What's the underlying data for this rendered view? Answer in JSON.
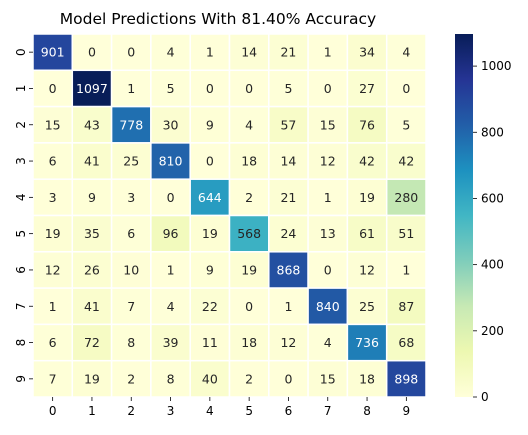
{
  "chart_data": {
    "type": "heatmap",
    "title": "Model Predictions With 81.40% Accuracy",
    "xlabel": "",
    "ylabel": "",
    "x_categories": [
      "0",
      "1",
      "2",
      "3",
      "4",
      "5",
      "6",
      "7",
      "8",
      "9"
    ],
    "y_categories": [
      "0",
      "1",
      "2",
      "3",
      "4",
      "5",
      "6",
      "7",
      "8",
      "9"
    ],
    "values": [
      [
        901,
        0,
        0,
        4,
        1,
        14,
        21,
        1,
        34,
        4
      ],
      [
        0,
        1097,
        1,
        5,
        0,
        0,
        5,
        0,
        27,
        0
      ],
      [
        15,
        43,
        778,
        30,
        9,
        4,
        57,
        15,
        76,
        5
      ],
      [
        6,
        41,
        25,
        810,
        0,
        18,
        14,
        12,
        42,
        42
      ],
      [
        3,
        9,
        3,
        0,
        644,
        2,
        21,
        1,
        19,
        280
      ],
      [
        19,
        35,
        6,
        96,
        19,
        568,
        24,
        13,
        61,
        51
      ],
      [
        12,
        26,
        10,
        1,
        9,
        19,
        868,
        0,
        12,
        1
      ],
      [
        1,
        41,
        7,
        4,
        22,
        0,
        1,
        840,
        25,
        87
      ],
      [
        6,
        72,
        8,
        39,
        11,
        18,
        12,
        4,
        736,
        68
      ],
      [
        7,
        19,
        2,
        8,
        40,
        2,
        0,
        15,
        18,
        898
      ]
    ],
    "colormap": "YlGnBu",
    "color_range": [
      0,
      1097
    ],
    "colorbar": {
      "ticks": [
        0,
        200,
        400,
        600,
        800,
        1000
      ]
    },
    "annotated": true,
    "grid_lines": "white"
  }
}
